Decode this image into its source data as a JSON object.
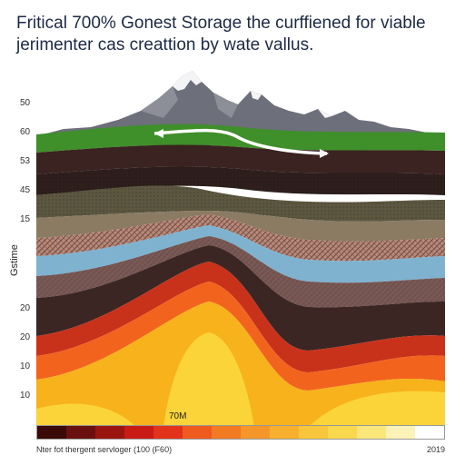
{
  "title": {
    "line1": "Fritical 700% Gonest Storage the curffiened for viable",
    "line2": "jerimenter cas creattion by wate vallus."
  },
  "axis": {
    "ticks": [
      "50",
      "60",
      "53",
      "45",
      "15",
      "Gstime",
      "20",
      "20",
      "10",
      "10"
    ],
    "side_label": "Gstime"
  },
  "center_label": "70M",
  "footer": {
    "left": "Nter fot thergent servloger (100 (F60)",
    "right": "2019"
  },
  "colors": {
    "grass": "#3f8f2a",
    "topsoil": "#3a2320",
    "shale_dark": "#2e1f1d",
    "sediment_olive": "#5c5740",
    "sediment_tan": "#8a7b62",
    "pattern_pink": "#b98a7a",
    "aquifer_blue": "#7fb2cf",
    "cap_mauve": "#7a5a56",
    "deep_dark": "#3b2624",
    "magma_orange": "#f2641e",
    "magma_yellow": "#f7b21c",
    "magma_light": "#fbd43a",
    "mountain": "#6d6f7a",
    "snow": "#f4f4f6",
    "arrow": "#ffffff"
  },
  "legend_colors": [
    "#3a0a08",
    "#6b1010",
    "#9a1510",
    "#c81b14",
    "#e2331a",
    "#ef5a1e",
    "#f27a22",
    "#f5962a",
    "#f6b02e",
    "#f8c63a",
    "#f9d84e",
    "#fbe67a",
    "#fdf3b8",
    "#ffffff"
  ]
}
